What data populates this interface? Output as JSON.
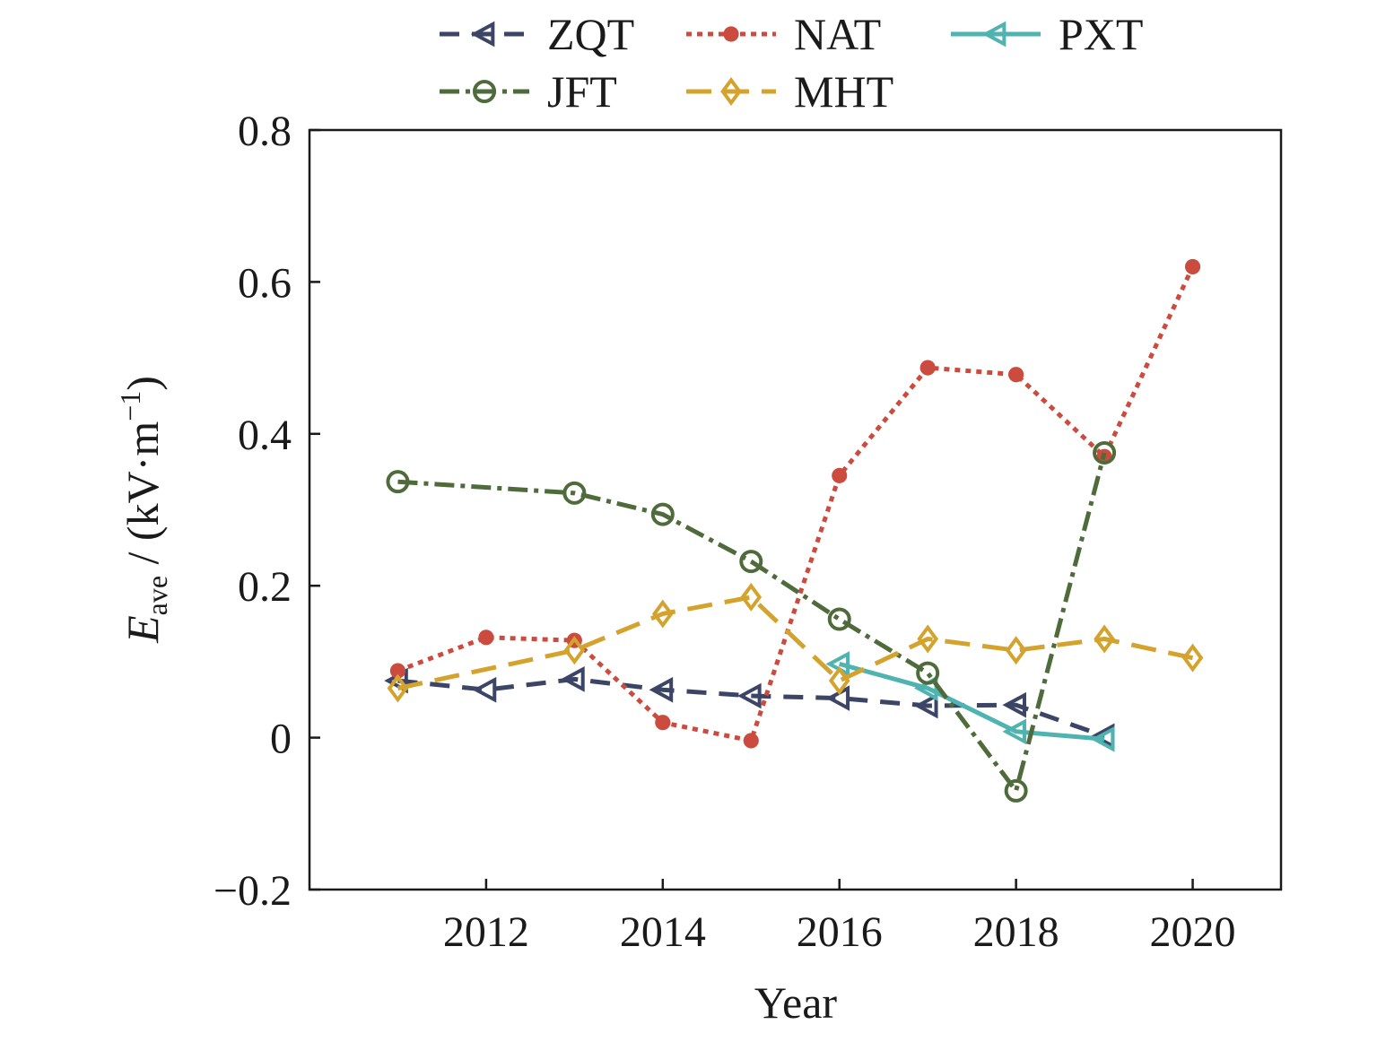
{
  "chart_data": {
    "type": "line",
    "xlabel": "Year",
    "ylabel": {
      "symbol": "E",
      "subscript": "ave",
      "unit_prefix": " / (kV·m",
      "unit_exponent": "−1",
      "unit_suffix": ")"
    },
    "xlim": [
      2010.0,
      2021.0
    ],
    "ylim": [
      -0.2,
      0.8
    ],
    "x_ticks": [
      2012,
      2014,
      2016,
      2018,
      2020
    ],
    "y_ticks": [
      {
        "value": -0.2,
        "label": "−0.2"
      },
      {
        "value": 0,
        "label": "0"
      },
      {
        "value": 0.2,
        "label": "0.2"
      },
      {
        "value": 0.4,
        "label": "0.4"
      },
      {
        "value": 0.6,
        "label": "0.6"
      },
      {
        "value": 0.8,
        "label": "0.8"
      }
    ],
    "grid": false,
    "legend_position": "top",
    "series": [
      {
        "name": "ZQT",
        "color": "#3c4566",
        "marker": "triangle-left",
        "dash": "22 14",
        "x": [
          2011,
          2012,
          2013,
          2014,
          2015,
          2016,
          2017,
          2018,
          2019
        ],
        "y": [
          0.075,
          0.063,
          0.077,
          0.063,
          0.055,
          0.052,
          0.042,
          0.043,
          0.002
        ]
      },
      {
        "name": "NAT",
        "color": "#cc4b3f",
        "marker": "dot",
        "dash": "6 6",
        "x": [
          2011,
          2012,
          2013,
          2014,
          2015,
          2016,
          2017,
          2018,
          2019,
          2020
        ],
        "y": [
          0.088,
          0.132,
          0.128,
          0.02,
          -0.004,
          0.345,
          0.487,
          0.478,
          0.37,
          0.62
        ]
      },
      {
        "name": "PXT",
        "color": "#4fb3b0",
        "marker": "triangle-left",
        "dash": "",
        "x": [
          2016,
          2017,
          2018,
          2019
        ],
        "y": [
          0.097,
          0.065,
          0.008,
          -0.002
        ]
      },
      {
        "name": "JFT",
        "color": "#4f6b3c",
        "marker": "circle",
        "dash": "22 7 5 7",
        "x": [
          2011,
          2013,
          2014,
          2015,
          2016,
          2017,
          2018,
          2019
        ],
        "y": [
          0.337,
          0.322,
          0.294,
          0.232,
          0.156,
          0.085,
          -0.07,
          0.375
        ]
      },
      {
        "name": "MHT",
        "color": "#d4a32e",
        "marker": "diamond",
        "dash": "28 14",
        "x": [
          2011,
          2013,
          2014,
          2015,
          2016,
          2017,
          2018,
          2019,
          2020
        ],
        "y": [
          0.065,
          0.115,
          0.163,
          0.185,
          0.075,
          0.13,
          0.115,
          0.13,
          0.105
        ]
      }
    ]
  }
}
